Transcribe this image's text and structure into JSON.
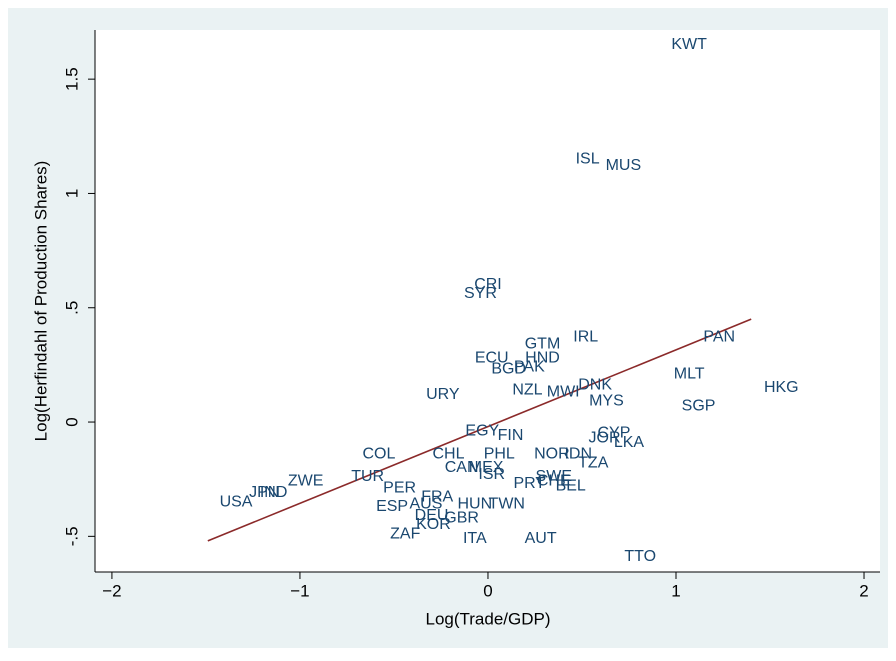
{
  "chart_data": {
    "type": "scatter",
    "xlabel": "Log(Trade/GDP)",
    "ylabel": "Log(Herfindahl of Production Shares)",
    "xlim": [
      -2.09,
      2.085
    ],
    "ylim": [
      -0.656,
      1.715
    ],
    "xticks": [
      {
        "value": -2,
        "label": "−2"
      },
      {
        "value": -1,
        "label": "−1"
      },
      0,
      1,
      2
    ],
    "yticks": [
      {
        "value": -0.5,
        "label": "-.5"
      },
      0,
      {
        "value": 0.5,
        "label": ".5"
      },
      1,
      1.5
    ],
    "series": [
      {
        "color": "#1a476f",
        "labels": [
          "KWT",
          "ISL",
          "MUS",
          "CRI",
          "SYR",
          "IRL",
          "PAN",
          "GTM",
          "ECU",
          "HND",
          "BGD",
          "PAK",
          "MLT",
          "HKG",
          "URY",
          "NZL",
          "MWI",
          "DNK",
          "MYS",
          "SGP",
          "EGY",
          "FIN",
          "CYP",
          "JOR",
          "LKA",
          "COL",
          "CHL",
          "PHL",
          "NOR",
          "IDN",
          "TZA",
          "CAN",
          "MEX",
          "ISR",
          "TUR",
          "SWE",
          "ZWE",
          "PRT",
          "CHE",
          "BEL",
          "PER",
          "IND",
          "JPN",
          "FRA",
          "USA",
          "AUS",
          "HUN",
          "TWN",
          "ESP",
          "DEU",
          "GBR",
          "KOR",
          "ZAF",
          "ITA",
          "AUT",
          "TTO"
        ],
        "x": [
          1.07,
          0.53,
          0.72,
          0.0,
          -0.04,
          0.52,
          1.23,
          0.29,
          0.02,
          0.29,
          0.11,
          0.22,
          1.07,
          1.56,
          -0.24,
          0.21,
          0.4,
          0.57,
          0.63,
          1.12,
          -0.03,
          0.12,
          0.67,
          0.62,
          0.75,
          -0.58,
          -0.21,
          0.06,
          0.34,
          0.48,
          0.56,
          -0.14,
          -0.01,
          0.02,
          -0.64,
          0.35,
          -0.97,
          0.22,
          0.35,
          0.44,
          -0.47,
          -1.14,
          -1.19,
          -0.27,
          -1.34,
          -0.33,
          -0.07,
          0.1,
          -0.51,
          -0.3,
          -0.14,
          -0.29,
          -0.44,
          -0.07,
          0.28,
          0.81
        ],
        "values": [
          1.65,
          1.15,
          1.12,
          0.6,
          0.56,
          0.37,
          0.37,
          0.34,
          0.28,
          0.28,
          0.23,
          0.24,
          0.21,
          0.15,
          0.12,
          0.14,
          0.13,
          0.16,
          0.09,
          0.07,
          -0.04,
          -0.06,
          -0.05,
          -0.07,
          -0.09,
          -0.14,
          -0.14,
          -0.14,
          -0.14,
          -0.14,
          -0.18,
          -0.2,
          -0.2,
          -0.23,
          -0.24,
          -0.24,
          -0.26,
          -0.27,
          -0.26,
          -0.28,
          -0.29,
          -0.31,
          -0.31,
          -0.33,
          -0.35,
          -0.36,
          -0.36,
          -0.36,
          -0.37,
          -0.41,
          -0.42,
          -0.45,
          -0.49,
          -0.51,
          -0.51,
          -0.59
        ]
      }
    ],
    "fit": {
      "color": "#8b2a2a",
      "x": [
        -1.49,
        1.4
      ],
      "values": [
        -0.52,
        0.45
      ]
    }
  }
}
